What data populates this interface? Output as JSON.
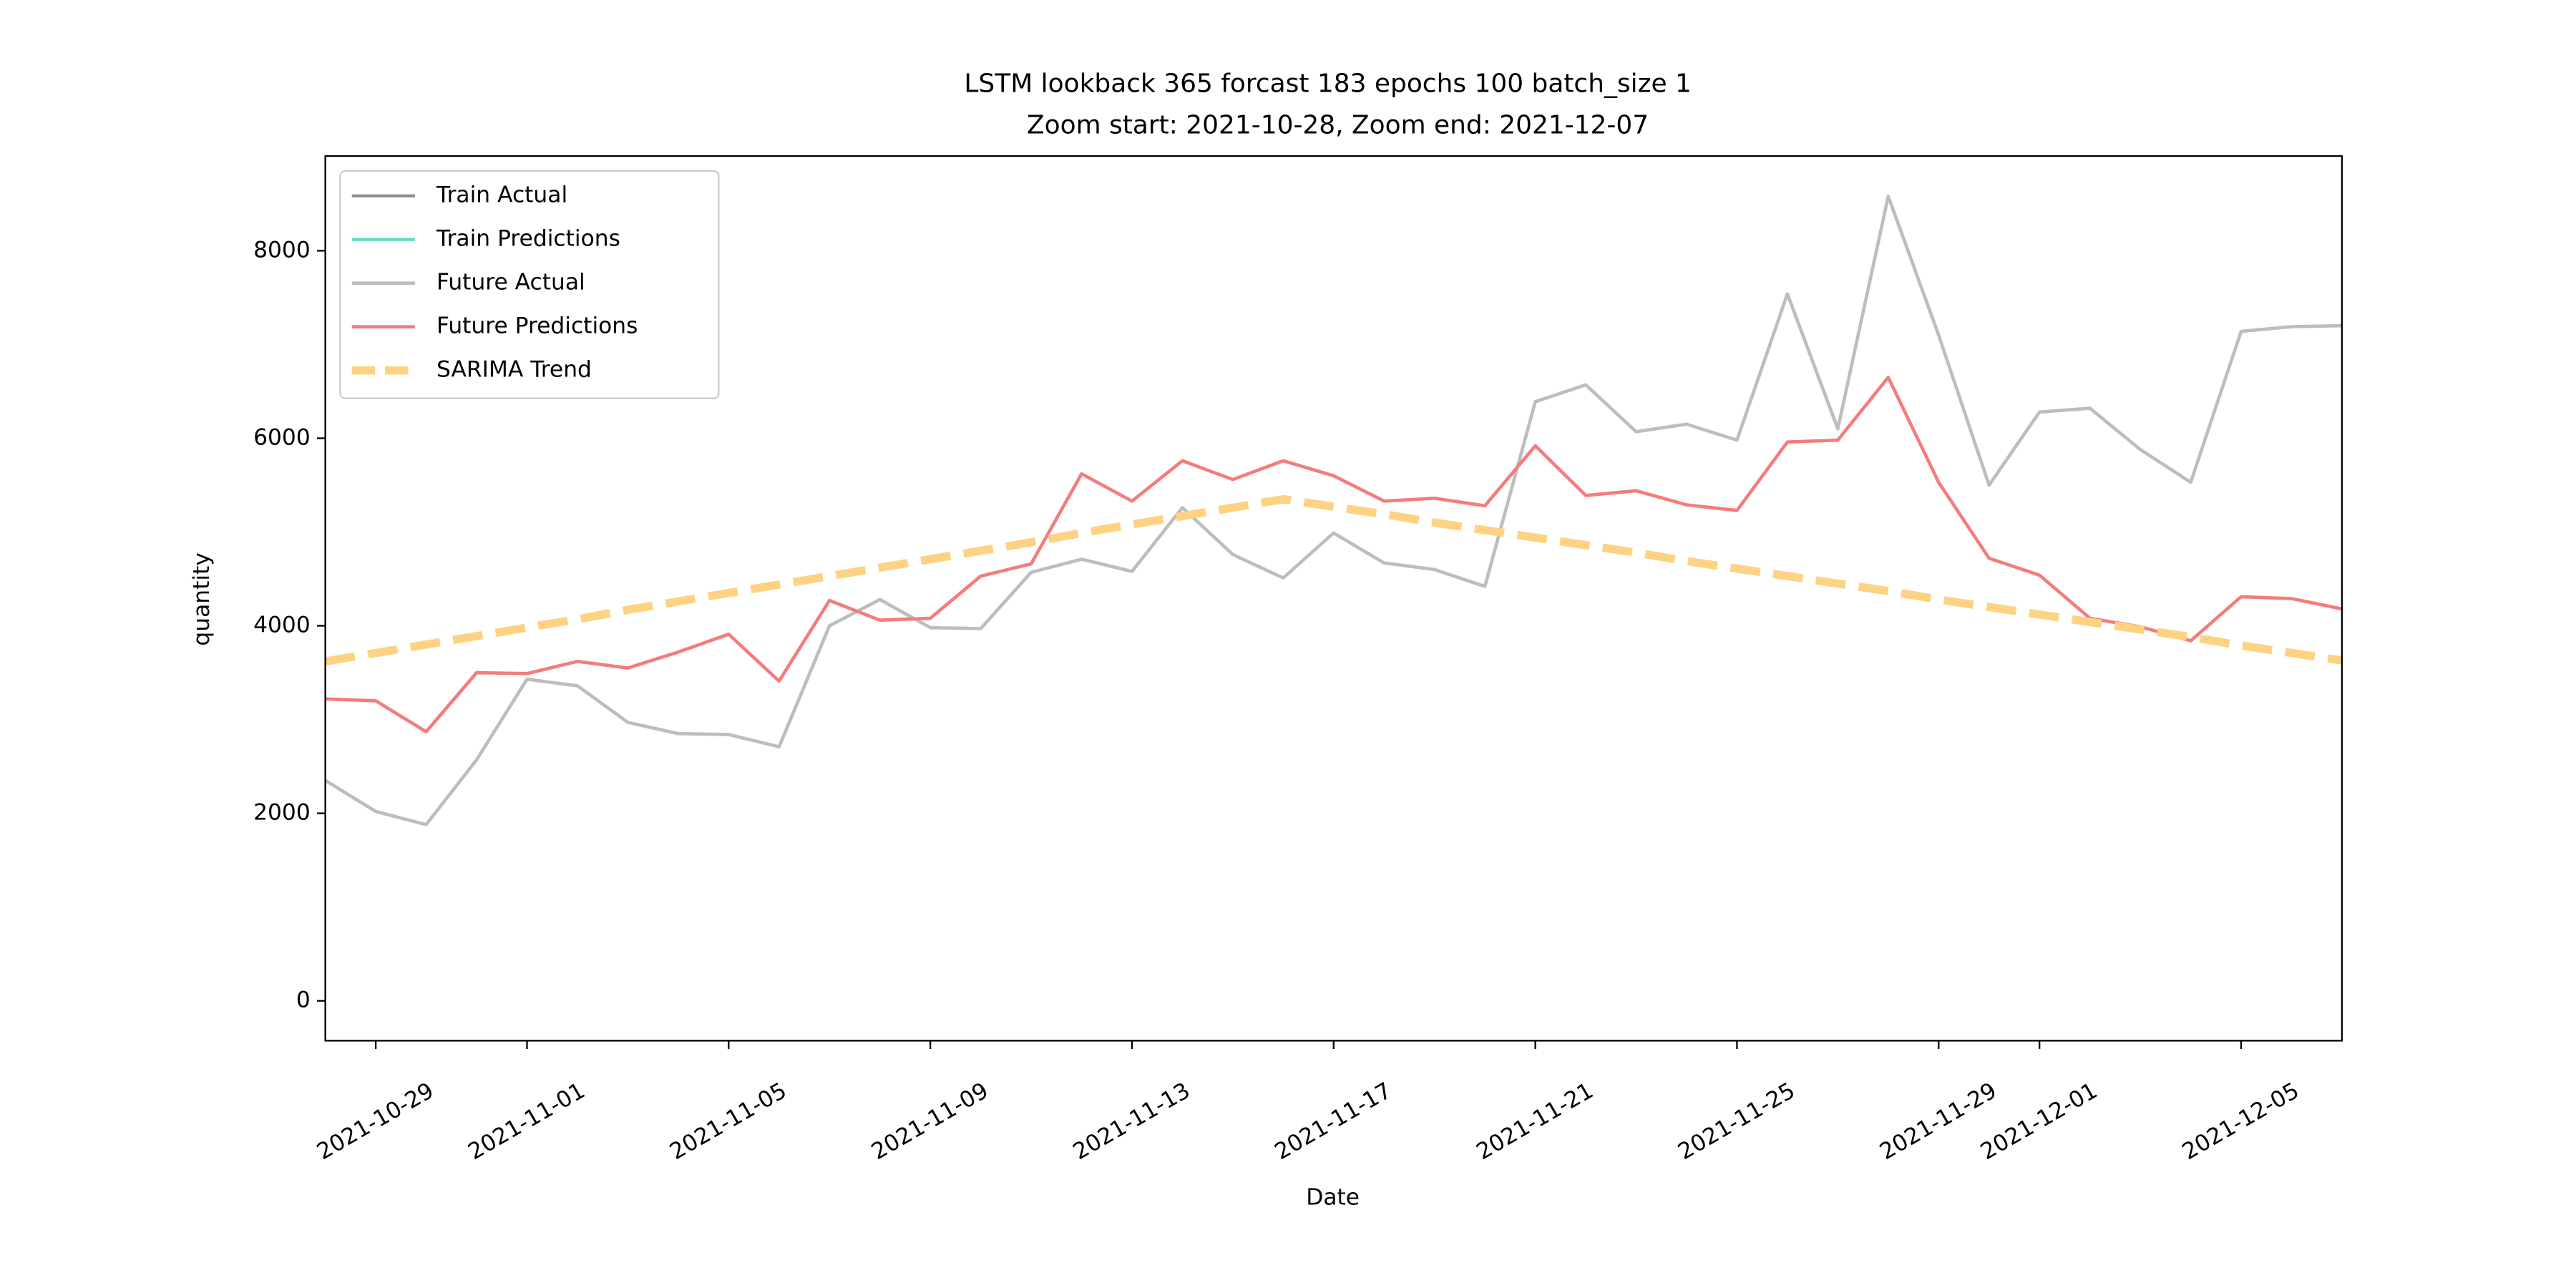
{
  "chart_data": {
    "type": "line",
    "title": "LSTM lookback 365 forcast 183 epochs 100 batch_size 1",
    "subtitle": "Zoom start: 2021-10-28, Zoom end: 2021-12-07",
    "x_label": "Date",
    "y_label": "quantity",
    "x": [
      "2021-10-28",
      "2021-10-29",
      "2021-10-30",
      "2021-10-31",
      "2021-11-01",
      "2021-11-02",
      "2021-11-03",
      "2021-11-04",
      "2021-11-05",
      "2021-11-06",
      "2021-11-07",
      "2021-11-08",
      "2021-11-09",
      "2021-11-10",
      "2021-11-11",
      "2021-11-12",
      "2021-11-13",
      "2021-11-14",
      "2021-11-15",
      "2021-11-16",
      "2021-11-17",
      "2021-11-18",
      "2021-11-19",
      "2021-11-20",
      "2021-11-21",
      "2021-11-22",
      "2021-11-23",
      "2021-11-24",
      "2021-11-25",
      "2021-11-26",
      "2021-11-27",
      "2021-11-28",
      "2021-11-29",
      "2021-11-30",
      "2021-12-01",
      "2021-12-02",
      "2021-12-03",
      "2021-12-04",
      "2021-12-05",
      "2021-12-06",
      "2021-12-07"
    ],
    "series": [
      {
        "name": "Train Actual",
        "color": "#8c8c8c",
        "width": 1.8,
        "dashed": false,
        "values": [
          null,
          null,
          null,
          null,
          null,
          null,
          null,
          null,
          null,
          null,
          null,
          null,
          null,
          null,
          null,
          null,
          null,
          null,
          null,
          null,
          null,
          null,
          null,
          null,
          null,
          null,
          null,
          null,
          null,
          null,
          null,
          null,
          null,
          null,
          null,
          null,
          null,
          null,
          null,
          null,
          null
        ]
      },
      {
        "name": "Train Predictions",
        "color": "#5fd9c2",
        "width": 1.8,
        "dashed": false,
        "values": [
          null,
          null,
          null,
          null,
          null,
          null,
          null,
          null,
          null,
          null,
          null,
          null,
          null,
          null,
          null,
          null,
          null,
          null,
          null,
          null,
          null,
          null,
          null,
          null,
          null,
          null,
          null,
          null,
          null,
          null,
          null,
          null,
          null,
          null,
          null,
          null,
          null,
          null,
          null,
          null,
          null
        ]
      },
      {
        "name": "Future Actual",
        "color": "#bdbdbd",
        "width": 2,
        "dashed": false,
        "values": [
          2350,
          2020,
          1880,
          2570,
          3430,
          3360,
          2970,
          2850,
          2840,
          2710,
          4000,
          4280,
          3980,
          3970,
          4570,
          4710,
          4580,
          5260,
          4760,
          4510,
          4990,
          4670,
          4600,
          4420,
          6390,
          6570,
          6070,
          6150,
          5980,
          7540,
          6100,
          8580,
          7100,
          5500,
          6280,
          6320,
          5880,
          5530,
          7140,
          7190,
          7200
        ]
      },
      {
        "name": "Future Predictions",
        "color": "#f47c7c",
        "width": 2,
        "dashed": false,
        "values": [
          3220,
          3200,
          2870,
          3500,
          3490,
          3620,
          3550,
          3720,
          3910,
          3410,
          4270,
          4060,
          4080,
          4530,
          4660,
          5620,
          5330,
          5760,
          5560,
          5760,
          5600,
          5330,
          5360,
          5280,
          5920,
          5390,
          5440,
          5290,
          5230,
          5960,
          5980,
          6650,
          5530,
          4720,
          4540,
          4080,
          3990,
          3840,
          4310,
          4290,
          4180
        ]
      },
      {
        "name": "SARIMA Trend",
        "color": "#fdd383",
        "width": 5,
        "dashed": true,
        "values": [
          3620,
          3710,
          3800,
          3890,
          3980,
          4070,
          4170,
          4260,
          4350,
          4440,
          4530,
          4620,
          4710,
          4800,
          4890,
          4990,
          5080,
          5170,
          5260,
          5350,
          5270,
          5190,
          5100,
          5020,
          4940,
          4860,
          4780,
          4690,
          4610,
          4530,
          4450,
          4370,
          4280,
          4200,
          4120,
          4040,
          3960,
          3880,
          3790,
          3710,
          3630
        ]
      }
    ],
    "xlim": [
      "2021-10-28",
      "2021-12-07"
    ],
    "xticks": [
      "2021-10-29",
      "2021-11-01",
      "2021-11-05",
      "2021-11-09",
      "2021-11-13",
      "2021-11-17",
      "2021-11-21",
      "2021-11-25",
      "2021-11-29",
      "2021-12-01",
      "2021-12-05"
    ],
    "ylim": [
      -425,
      9010
    ],
    "yticks": [
      0,
      2000,
      4000,
      6000,
      8000
    ],
    "grid": false,
    "legend": "upper left"
  }
}
